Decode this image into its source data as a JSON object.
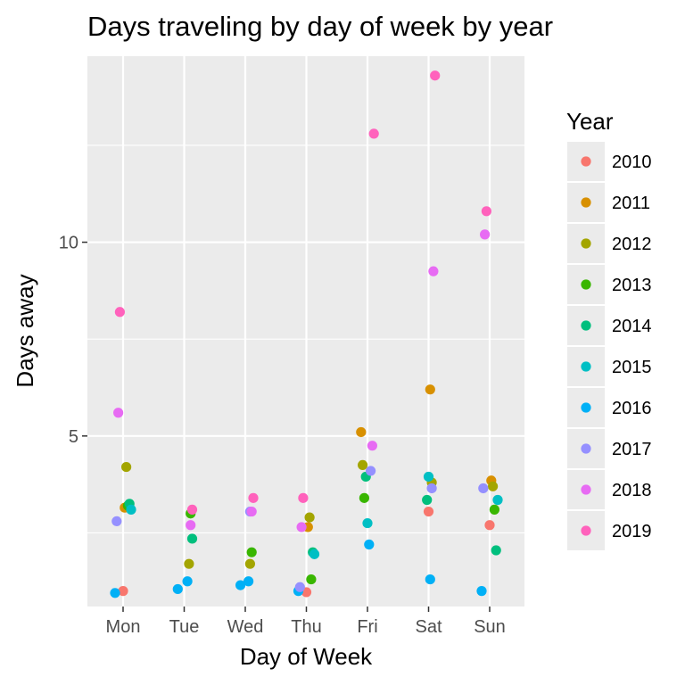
{
  "chart_data": {
    "type": "scatter",
    "title": "Days traveling by day of week by year",
    "xlabel": "Day of Week",
    "ylabel": "Days away",
    "categories": [
      "Mon",
      "Tue",
      "Wed",
      "Thu",
      "Fri",
      "Sat",
      "Sun"
    ],
    "ylim": [
      0.6,
      14.8
    ],
    "yticks": [
      5,
      10
    ],
    "y_minor_ticks": [
      2.5,
      7.5,
      12.5
    ],
    "grid": true,
    "panel_background": "#EBEBEB",
    "grid_color": "#FFFFFF",
    "legend": {
      "title": "Year",
      "position": "right"
    },
    "series": [
      {
        "name": "2010",
        "color": "#F8766D",
        "points": [
          {
            "x": "Mon",
            "y": 1.0
          },
          {
            "x": "Thu",
            "y": 0.97
          },
          {
            "x": "Sat",
            "y": 3.05
          },
          {
            "x": "Sun",
            "y": 2.7
          }
        ]
      },
      {
        "name": "2011",
        "color": "#D89000",
        "points": [
          {
            "x": "Mon",
            "y": 3.15
          },
          {
            "x": "Thu",
            "y": 2.65
          },
          {
            "x": "Fri",
            "y": 5.1
          },
          {
            "x": "Sat",
            "y": 6.2
          },
          {
            "x": "Sun",
            "y": 3.85
          }
        ]
      },
      {
        "name": "2012",
        "color": "#A3A500",
        "points": [
          {
            "x": "Mon",
            "y": 4.2
          },
          {
            "x": "Tue",
            "y": 1.7
          },
          {
            "x": "Wed",
            "y": 1.7
          },
          {
            "x": "Thu",
            "y": 2.9
          },
          {
            "x": "Fri",
            "y": 4.25
          },
          {
            "x": "Sat",
            "y": 3.8
          },
          {
            "x": "Sun",
            "y": 3.7
          }
        ]
      },
      {
        "name": "2013",
        "color": "#39B600",
        "points": [
          {
            "x": "Mon",
            "y": 3.2
          },
          {
            "x": "Tue",
            "y": 3.0
          },
          {
            "x": "Wed",
            "y": 2.0
          },
          {
            "x": "Thu",
            "y": 1.3
          },
          {
            "x": "Fri",
            "y": 3.4
          },
          {
            "x": "Sun",
            "y": 3.1
          }
        ]
      },
      {
        "name": "2014",
        "color": "#00BF7D",
        "points": [
          {
            "x": "Mon",
            "y": 3.25
          },
          {
            "x": "Tue",
            "y": 2.35
          },
          {
            "x": "Thu",
            "y": 2.0
          },
          {
            "x": "Fri",
            "y": 3.95
          },
          {
            "x": "Sat",
            "y": 3.35
          },
          {
            "x": "Sun",
            "y": 2.05
          }
        ]
      },
      {
        "name": "2015",
        "color": "#00BFC4",
        "points": [
          {
            "x": "Mon",
            "y": 3.1
          },
          {
            "x": "Thu",
            "y": 1.95
          },
          {
            "x": "Fri",
            "y": 2.75
          },
          {
            "x": "Sat",
            "y": 3.95
          },
          {
            "x": "Sun",
            "y": 3.35
          }
        ]
      },
      {
        "name": "2016",
        "color": "#00B0F6",
        "points": [
          {
            "x": "Mon",
            "y": 0.95
          },
          {
            "x": "Tue",
            "y": 1.25
          },
          {
            "x": "Tue",
            "y": 1.05
          },
          {
            "x": "Wed",
            "y": 1.15
          },
          {
            "x": "Wed",
            "y": 1.25
          },
          {
            "x": "Thu",
            "y": 1.0
          },
          {
            "x": "Fri",
            "y": 2.2
          },
          {
            "x": "Sat",
            "y": 1.3
          },
          {
            "x": "Sun",
            "y": 1.0
          }
        ]
      },
      {
        "name": "2017",
        "color": "#9590FF",
        "points": [
          {
            "x": "Mon",
            "y": 2.8
          },
          {
            "x": "Wed",
            "y": 3.05
          },
          {
            "x": "Thu",
            "y": 1.1
          },
          {
            "x": "Fri",
            "y": 4.1
          },
          {
            "x": "Sat",
            "y": 3.65
          },
          {
            "x": "Sun",
            "y": 3.65
          }
        ]
      },
      {
        "name": "2018",
        "color": "#E76BF3",
        "points": [
          {
            "x": "Mon",
            "y": 5.6
          },
          {
            "x": "Tue",
            "y": 2.7
          },
          {
            "x": "Wed",
            "y": 3.05
          },
          {
            "x": "Thu",
            "y": 2.65
          },
          {
            "x": "Fri",
            "y": 4.75
          },
          {
            "x": "Sat",
            "y": 9.25
          },
          {
            "x": "Sun",
            "y": 10.2
          }
        ]
      },
      {
        "name": "2019",
        "color": "#FF62BC",
        "points": [
          {
            "x": "Mon",
            "y": 8.2
          },
          {
            "x": "Tue",
            "y": 3.1
          },
          {
            "x": "Wed",
            "y": 3.4
          },
          {
            "x": "Thu",
            "y": 3.4
          },
          {
            "x": "Fri",
            "y": 12.8
          },
          {
            "x": "Sat",
            "y": 14.3
          },
          {
            "x": "Sun",
            "y": 10.8
          }
        ]
      }
    ]
  }
}
